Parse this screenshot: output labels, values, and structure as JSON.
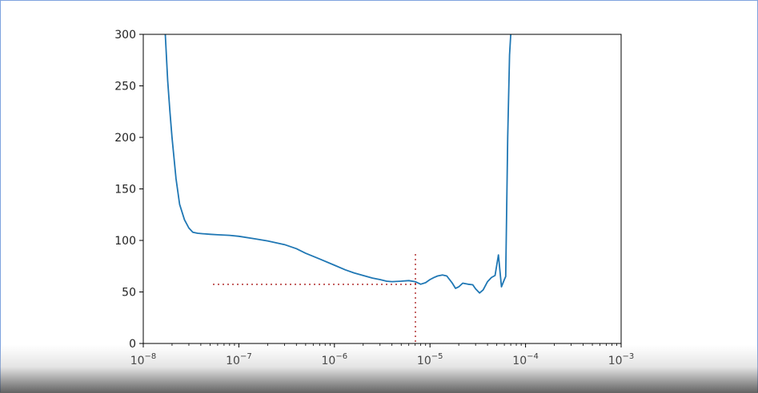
{
  "chart_data": {
    "type": "line",
    "x_scale": "log",
    "xlim": [
      1e-08,
      0.001
    ],
    "ylim": [
      0,
      300
    ],
    "x_ticks": [
      {
        "base": "10",
        "exp": "−8"
      },
      {
        "base": "10",
        "exp": "−7"
      },
      {
        "base": "10",
        "exp": "−6"
      },
      {
        "base": "10",
        "exp": "−5"
      },
      {
        "base": "10",
        "exp": "−4"
      },
      {
        "base": "10",
        "exp": "−3"
      }
    ],
    "y_ticks": [
      "0",
      "50",
      "100",
      "150",
      "200",
      "250",
      "300"
    ],
    "y_tick_values": [
      0,
      50,
      100,
      150,
      200,
      250,
      300
    ],
    "series": [
      {
        "color": "#1f77b4",
        "x": [
          1.7e-08,
          1.8e-08,
          1.9e-08,
          2e-08,
          2.2e-08,
          2.4e-08,
          2.7e-08,
          3e-08,
          3.3e-08,
          3.7e-08,
          4.2e-08,
          5e-08,
          6e-08,
          8e-08,
          1e-07,
          1.5e-07,
          2e-07,
          3e-07,
          4e-07,
          5e-07,
          7e-07,
          1e-06,
          1.3e-06,
          1.6e-06,
          2e-06,
          2.5e-06,
          3e-06,
          3.5e-06,
          4e-06,
          5e-06,
          6e-06,
          7e-06,
          8e-06,
          9e-06,
          1e-05,
          1.1e-05,
          1.2e-05,
          1.35e-05,
          1.5e-05,
          1.7e-05,
          1.85e-05,
          2e-05,
          2.2e-05,
          2.5e-05,
          2.8e-05,
          3e-05,
          3.3e-05,
          3.6e-05,
          4e-05,
          4.4e-05,
          4.8e-05,
          5.2e-05,
          5.6e-05,
          6e-05,
          6.2e-05,
          6.5e-05,
          6.8e-05,
          7e-05
        ],
        "y": [
          300,
          255,
          225,
          200,
          160,
          135,
          120,
          112,
          108,
          107,
          106.5,
          106,
          105.5,
          105,
          104,
          101.5,
          99.5,
          96,
          92,
          87.5,
          82,
          76,
          71.5,
          68.5,
          66,
          63.5,
          62,
          60.5,
          60,
          60.5,
          61,
          60,
          57.5,
          59,
          62,
          64,
          65.5,
          66.5,
          65.5,
          59,
          53.5,
          55,
          58.5,
          57.5,
          57,
          53,
          49,
          52,
          60,
          64,
          66,
          86,
          55,
          62,
          65,
          200,
          280,
          300
        ]
      }
    ]
  }
}
